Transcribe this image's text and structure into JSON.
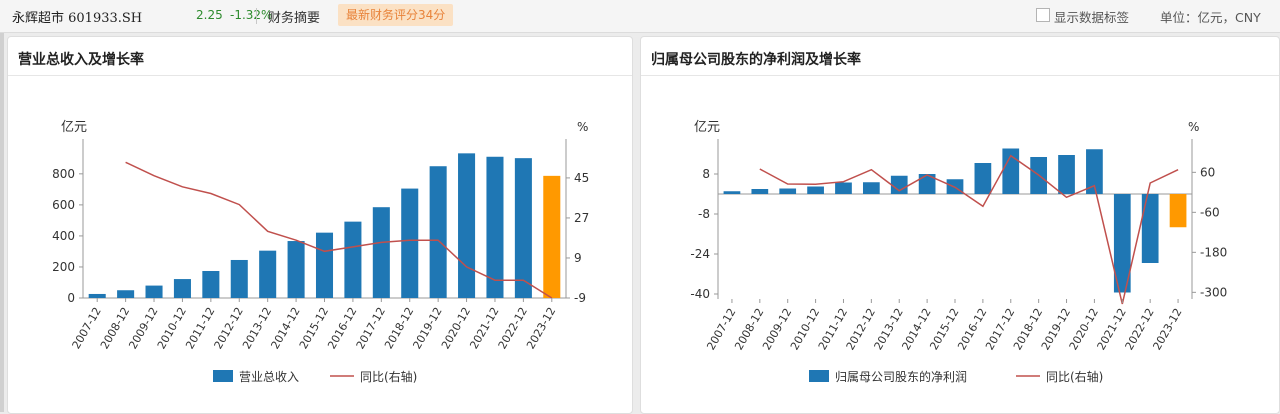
{
  "header": {
    "stock_name": "永辉超市 601933.SH",
    "price": "2.25",
    "change": "-1.32%",
    "summary_tab": "财务摘要",
    "score_badge": "最新财务评分34分",
    "show_labels": "显示数据标签",
    "unit": "单位：亿元，CNY"
  },
  "colors": {
    "bar": "#1f77b4",
    "bar_highlight": "#ff9900",
    "line": "#c0504d",
    "badge_bg": "#fbe1c4",
    "badge_text": "#e8833a",
    "price_up_down": "#2e8b2e"
  },
  "chart_data": [
    {
      "type": "bar",
      "title": "营业总收入及增长率",
      "ylabel": "亿元",
      "y2label": "%",
      "categories": [
        "2007-12",
        "2008-12",
        "2009-12",
        "2010-12",
        "2011-12",
        "2012-12",
        "2013-12",
        "2014-12",
        "2015-12",
        "2016-12",
        "2017-12",
        "2018-12",
        "2019-12",
        "2020-12",
        "2021-12",
        "2022-12",
        "2023-12"
      ],
      "yticks": [
        "0",
        "200",
        "400",
        "600",
        "800"
      ],
      "y2ticks": [
        "-9",
        "9",
        "27",
        "45"
      ],
      "ylim": [
        0,
        960
      ],
      "y2lim": [
        -9,
        58
      ],
      "series": [
        {
          "name": "营业总收入",
          "kind": "bar",
          "axis": "left",
          "values": [
            26,
            50,
            80,
            122,
            174,
            245,
            305,
            367,
            421,
            492,
            585,
            705,
            849,
            932,
            910,
            901,
            787
          ]
        },
        {
          "name": "同比(右轴)",
          "kind": "line",
          "axis": "right",
          "values": [
            null,
            52,
            46,
            41,
            38,
            33,
            21,
            17,
            12,
            14,
            16,
            17,
            17,
            5,
            -1,
            -1,
            -9
          ]
        }
      ],
      "legend_position": "bottom",
      "grid": false
    },
    {
      "type": "bar",
      "title": "归属母公司股东的净利润及增长率",
      "ylabel": "亿元",
      "y2label": "%",
      "categories": [
        "2007-12",
        "2008-12",
        "2009-12",
        "2010-12",
        "2011-12",
        "2012-12",
        "2013-12",
        "2014-12",
        "2015-12",
        "2016-12",
        "2017-12",
        "2018-12",
        "2019-12",
        "2020-12",
        "2021-12",
        "2022-12",
        "2023-12"
      ],
      "yticks": [
        "-40",
        "-24",
        "-8",
        "8"
      ],
      "y2ticks": [
        "-300",
        "-180",
        "-60",
        "60"
      ],
      "ylim": [
        -42,
        18
      ],
      "y2lim": [
        -320,
        130
      ],
      "series": [
        {
          "name": "归属母公司股东的净利润",
          "kind": "bar",
          "axis": "left",
          "values": [
            1.1,
            2.0,
            2.2,
            3.0,
            4.6,
            4.7,
            7.3,
            8.0,
            5.9,
            12.4,
            18.2,
            14.8,
            15.6,
            17.9,
            -39.4,
            -27.6,
            -13.3
          ]
        },
        {
          "name": "同比(右轴)",
          "kind": "line",
          "axis": "right",
          "values": [
            null,
            70,
            25,
            24,
            32,
            68,
            5,
            52,
            15,
            -42,
            110,
            52,
            -15,
            20,
            -335,
            28,
            68
          ]
        }
      ],
      "legend_position": "bottom",
      "grid": false
    }
  ]
}
